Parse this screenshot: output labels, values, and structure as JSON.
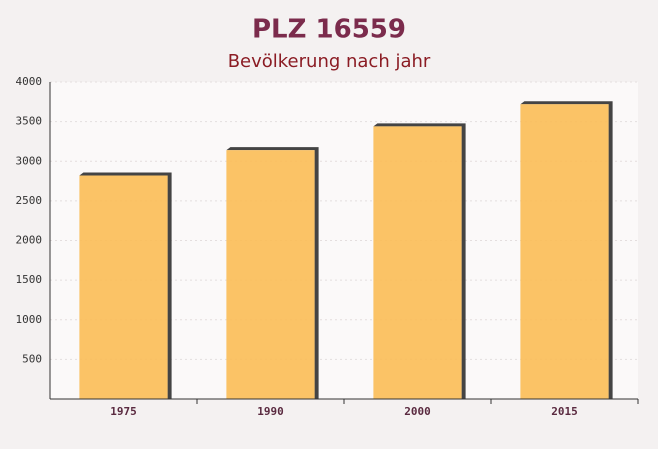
{
  "chart_data": {
    "type": "bar",
    "title": "PLZ 16559",
    "subtitle": "Bevölkerung nach jahr",
    "categories": [
      "1975",
      "1990",
      "2000",
      "2015"
    ],
    "values": [
      2820,
      3140,
      3440,
      3720
    ],
    "color": "#fbbd55",
    "ylim": [
      0,
      4000
    ],
    "yticks": [
      500,
      1000,
      1500,
      2000,
      2500,
      3000,
      3500,
      4000
    ],
    "grid": true
  }
}
